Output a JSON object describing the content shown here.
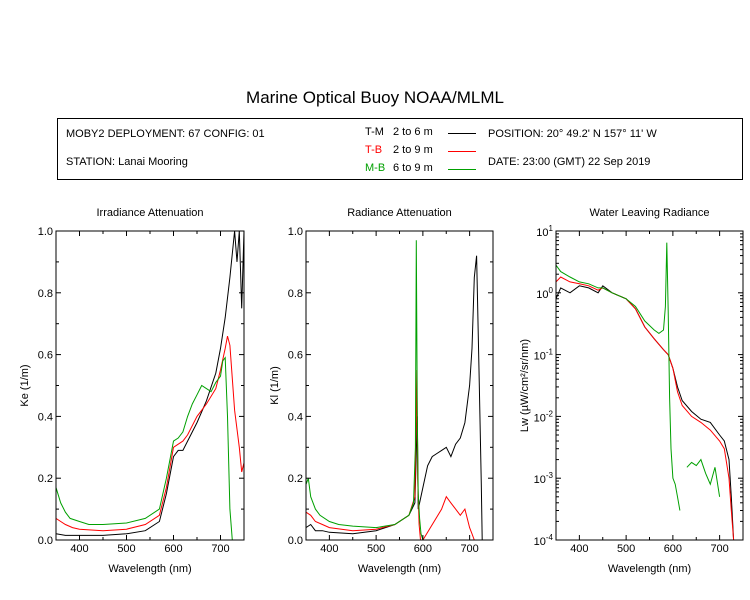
{
  "title": "Marine Optical Buoy NOAA/MLML",
  "info": {
    "deployment": "MOBY2 DEPLOYMENT: 67 CONFIG: 01",
    "station": "STATION: Lanai Mooring",
    "position": "POSITION: 20° 49.2' N   157° 11' W",
    "date": "DATE: 23:00 (GMT) 22 Sep 2019",
    "legend": [
      {
        "code": "T-M",
        "depth": "2 to 6  m",
        "color": "#000000"
      },
      {
        "code": "T-B",
        "depth": "2 to 9  m",
        "color": "#ff0000"
      },
      {
        "code": "M-B",
        "depth": "6 to 9  m",
        "color": "#00a000"
      }
    ]
  },
  "chart_data": [
    {
      "type": "line",
      "title": "Irradiance Attenuation",
      "xlabel": "Wavelength (nm)",
      "ylabel": "Ke  (1/m)",
      "xlim": [
        350,
        750
      ],
      "ylim": [
        0,
        1
      ],
      "xticks": [
        "400",
        "500",
        "600",
        "700"
      ],
      "yticks": [
        "0.0",
        "0.2",
        "0.4",
        "0.6",
        "0.8",
        "1.0"
      ],
      "series": [
        {
          "name": "T-M",
          "color": "#000000",
          "x": [
            350,
            370,
            400,
            450,
            500,
            540,
            570,
            585,
            600,
            610,
            620,
            630,
            650,
            670,
            690,
            700,
            710,
            720,
            730,
            735,
            740,
            745,
            750
          ],
          "y": [
            0.02,
            0.015,
            0.015,
            0.015,
            0.02,
            0.03,
            0.06,
            0.15,
            0.27,
            0.29,
            0.29,
            0.32,
            0.38,
            0.45,
            0.54,
            0.62,
            0.72,
            0.85,
            1.0,
            0.9,
            1.0,
            0.75,
            1.0
          ]
        },
        {
          "name": "T-B",
          "color": "#ff0000",
          "x": [
            350,
            360,
            370,
            385,
            400,
            450,
            500,
            540,
            570,
            585,
            600,
            610,
            620,
            630,
            650,
            670,
            690,
            700,
            710,
            715,
            720,
            730,
            740,
            745,
            750
          ],
          "y": [
            0.07,
            0.06,
            0.05,
            0.04,
            0.035,
            0.03,
            0.035,
            0.05,
            0.08,
            0.17,
            0.3,
            0.31,
            0.32,
            0.34,
            0.4,
            0.44,
            0.49,
            0.55,
            0.62,
            0.66,
            0.63,
            0.42,
            0.3,
            0.22,
            0.25
          ]
        },
        {
          "name": "M-B",
          "color": "#00a000",
          "x": [
            350,
            360,
            370,
            380,
            400,
            420,
            450,
            500,
            540,
            570,
            585,
            600,
            610,
            620,
            630,
            640,
            650,
            660,
            670,
            680,
            690,
            700,
            705,
            710,
            715,
            720,
            725
          ],
          "y": [
            0.17,
            0.12,
            0.09,
            0.07,
            0.06,
            0.05,
            0.05,
            0.055,
            0.07,
            0.1,
            0.2,
            0.32,
            0.33,
            0.35,
            0.4,
            0.44,
            0.47,
            0.5,
            0.49,
            0.48,
            0.51,
            0.53,
            0.58,
            0.59,
            0.4,
            0.1,
            0.0
          ]
        }
      ]
    },
    {
      "type": "line",
      "title": "Radiance Attenuation",
      "xlabel": "Wavelength (nm)",
      "ylabel": "Kl  (1/m)",
      "xlim": [
        350,
        750
      ],
      "ylim": [
        0,
        1
      ],
      "xticks": [
        "400",
        "500",
        "600",
        "700"
      ],
      "yticks": [
        "0.0",
        "0.2",
        "0.4",
        "0.6",
        "0.8",
        "1.0"
      ],
      "series": [
        {
          "name": "T-M",
          "color": "#000000",
          "x": [
            350,
            360,
            370,
            385,
            400,
            450,
            500,
            540,
            570,
            583,
            588,
            590,
            593,
            600,
            610,
            620,
            630,
            640,
            650,
            660,
            670,
            680,
            690,
            700,
            705,
            710,
            715,
            720,
            725,
            727
          ],
          "y": [
            0.04,
            0.05,
            0.03,
            0.03,
            0.025,
            0.02,
            0.03,
            0.05,
            0.08,
            0.12,
            0.4,
            0.1,
            0.12,
            0.17,
            0.24,
            0.27,
            0.28,
            0.29,
            0.3,
            0.27,
            0.31,
            0.33,
            0.38,
            0.5,
            0.62,
            0.85,
            0.92,
            0.55,
            0.18,
            0.0
          ]
        },
        {
          "name": "T-B",
          "color": "#ff0000",
          "x": [
            350,
            360,
            370,
            385,
            400,
            450,
            500,
            540,
            570,
            583,
            587,
            589,
            592,
            595,
            600,
            640,
            650,
            660,
            670,
            680,
            690,
            700,
            705,
            710
          ],
          "y": [
            0.09,
            0.08,
            0.06,
            0.05,
            0.04,
            0.03,
            0.035,
            0.05,
            0.08,
            0.14,
            0.55,
            0.2,
            0.05,
            0.0,
            0.0,
            0.1,
            0.14,
            0.12,
            0.1,
            0.08,
            0.1,
            0.04,
            0.02,
            0.0
          ]
        },
        {
          "name": "M-B",
          "color": "#00a000",
          "x": [
            350,
            355,
            360,
            370,
            380,
            400,
            420,
            450,
            500,
            540,
            570,
            580,
            584,
            586,
            588,
            590,
            593,
            596,
            600
          ],
          "y": [
            0.18,
            0.2,
            0.14,
            0.1,
            0.08,
            0.06,
            0.05,
            0.045,
            0.04,
            0.05,
            0.08,
            0.12,
            0.3,
            0.97,
            0.4,
            0.15,
            0.07,
            0.02,
            0.0
          ]
        }
      ]
    },
    {
      "type": "line",
      "title": "Water Leaving Radiance",
      "xlabel": "Wavelength (nm)",
      "ylabel": "Lw  (µW/cm²/sr/nm)",
      "yscale": "log",
      "xlim": [
        350,
        750
      ],
      "ylim": [
        0.0001,
        10
      ],
      "xticks": [
        "400",
        "500",
        "600",
        "700"
      ],
      "yticks": [
        "10-4",
        "10-3",
        "10-2",
        "10-1",
        "100",
        "101"
      ],
      "series": [
        {
          "name": "T-M",
          "color": "#000000",
          "x": [
            350,
            360,
            380,
            400,
            420,
            440,
            450,
            470,
            500,
            520,
            540,
            560,
            580,
            590,
            600,
            610,
            620,
            640,
            660,
            680,
            700,
            710,
            720,
            725,
            730
          ],
          "y": [
            0.8,
            1.2,
            1.0,
            1.3,
            1.2,
            1.0,
            1.3,
            1.0,
            0.8,
            0.55,
            0.28,
            0.18,
            0.12,
            0.1,
            0.06,
            0.03,
            0.018,
            0.012,
            0.009,
            0.008,
            0.005,
            0.004,
            0.002,
            0.0005,
            0.0001
          ]
        },
        {
          "name": "T-B",
          "color": "#ff0000",
          "x": [
            350,
            360,
            380,
            400,
            420,
            440,
            450,
            470,
            500,
            520,
            540,
            560,
            580,
            590,
            600,
            610,
            620,
            640,
            660,
            680,
            700,
            710,
            720,
            725,
            730
          ],
          "y": [
            1.5,
            1.8,
            1.5,
            1.4,
            1.3,
            1.1,
            1.2,
            1.0,
            0.8,
            0.55,
            0.28,
            0.18,
            0.12,
            0.1,
            0.06,
            0.025,
            0.015,
            0.01,
            0.008,
            0.006,
            0.004,
            0.003,
            0.001,
            0.0003,
            0.0001
          ]
        },
        {
          "name": "M-B",
          "color": "#00a000",
          "x": [
            350,
            360,
            380,
            400,
            420,
            440,
            450,
            470,
            500,
            520,
            540,
            560,
            570,
            580,
            584,
            587,
            590,
            593,
            596,
            600,
            605,
            610,
            615
          ],
          "y": [
            2.8,
            2.2,
            1.8,
            1.5,
            1.4,
            1.2,
            1.2,
            1.0,
            0.8,
            0.6,
            0.35,
            0.25,
            0.22,
            0.25,
            0.6,
            6.5,
            0.5,
            0.02,
            0.003,
            0.001,
            0.0008,
            0.0005,
            0.0003
          ]
        },
        {
          "name": "M-B",
          "color": "#00a000",
          "x": [
            630,
            640,
            650,
            660,
            670,
            680,
            690,
            700
          ],
          "y": [
            0.0015,
            0.0018,
            0.0016,
            0.002,
            0.0012,
            0.0008,
            0.0015,
            0.0005
          ]
        }
      ]
    }
  ]
}
